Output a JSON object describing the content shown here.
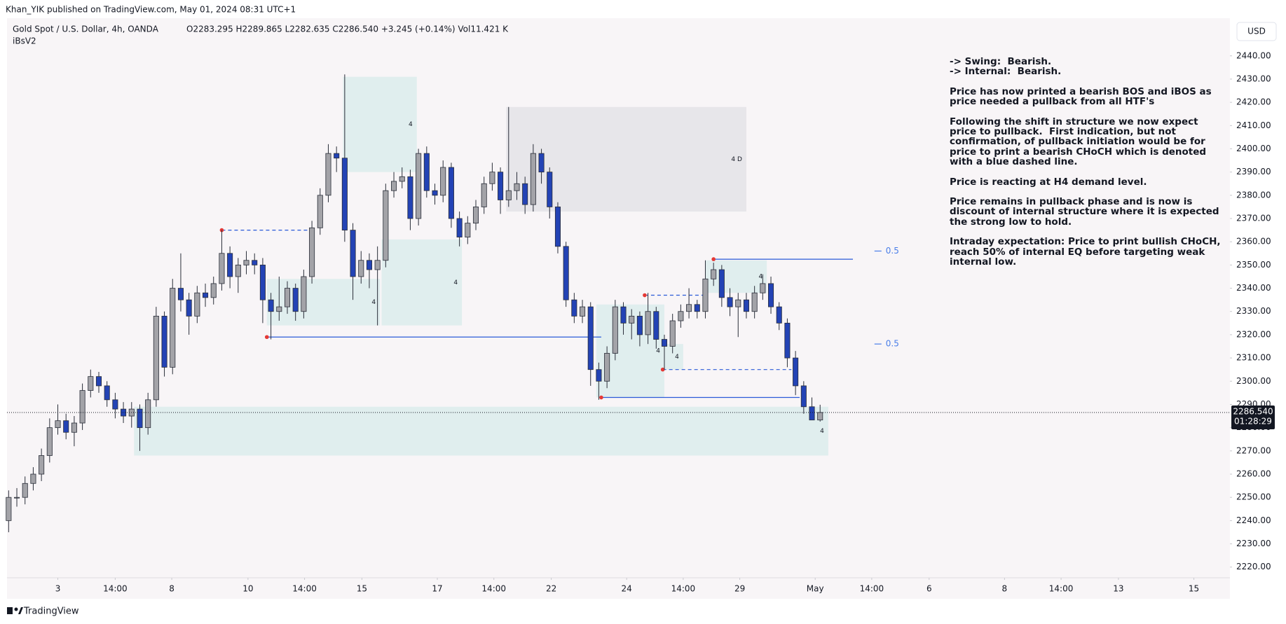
{
  "header": "Khan_YIK published on TradingView.com, May 01, 2024 08:31 UTC+1",
  "symbol": "Gold Spot / U.S. Dollar, 4h, OANDA",
  "ohlc_text": "O2283.295  H2289.865  L2282.635  C2286.540  +3.245 (+0.14%)  Vol11.421 K",
  "indicator": "iBsV2",
  "currency": "USD",
  "brand": "TradingView",
  "notes": [
    [
      "-> Swing:  Bearish.",
      "-> Internal:  Bearish."
    ],
    [
      "Price has now printed a bearish BOS and iBOS as",
      "price needed a pullback from all HTF's"
    ],
    [
      "Following the shift in structure we now expect",
      "price to pullback.  First indication, but not",
      "confirmation, of pullback initiation would be for",
      "price to print a bearish CHoCH which is denoted",
      "with a blue dashed line."
    ],
    [
      "Price is reacting at H4 demand level."
    ],
    [
      "Price remains in pullback phase and is now is",
      "discount of internal structure where it is expected",
      "the strong low to hold."
    ],
    [
      "Intraday expectation: Price to print bullish CHoCH,",
      "reach 50% of internal EQ before targeting weak",
      "internal low."
    ]
  ],
  "chart_data": {
    "type": "candlestick",
    "up_color": "#a3a3a8",
    "down_color": "#2343b5",
    "open": [
      2240,
      2250,
      2250,
      2256,
      2260,
      2268,
      2280,
      2283,
      2278,
      2282,
      2296,
      2302,
      2298,
      2292,
      2288,
      2285,
      2288,
      2280,
      2292,
      2328,
      2306,
      2340,
      2335,
      2328,
      2338,
      2336,
      2342,
      2355,
      2345,
      2350,
      2352,
      2350,
      2335,
      2330,
      2332,
      2340,
      2330,
      2345,
      2366,
      2380,
      2398,
      2396,
      2365,
      2345,
      2352,
      2348,
      2352,
      2382,
      2386,
      2388,
      2370,
      2398,
      2382,
      2380,
      2392,
      2370,
      2362,
      2368,
      2375,
      2385,
      2390,
      2378,
      2382,
      2385,
      2376,
      2398,
      2390,
      2375,
      2358,
      2335,
      2328,
      2332,
      2305,
      2300,
      2312,
      2332,
      2325,
      2328,
      2320,
      2330,
      2318,
      2315,
      2326,
      2330,
      2333,
      2330,
      2344,
      2348,
      2336,
      2332,
      2335,
      2330,
      2338,
      2342,
      2332,
      2325,
      2310,
      2298,
      2289,
      2283.295
    ],
    "high": [
      2253,
      2254,
      2259,
      2263,
      2271,
      2284,
      2290,
      2286,
      2285,
      2299,
      2305,
      2304,
      2300,
      2295,
      2291,
      2291,
      2290,
      2295,
      2332,
      2330,
      2344,
      2355,
      2338,
      2341,
      2342,
      2345,
      2365,
      2358,
      2353,
      2356,
      2355,
      2353,
      2338,
      2345,
      2343,
      2342,
      2348,
      2369,
      2383,
      2402,
      2401,
      2432,
      2368,
      2356,
      2355,
      2358,
      2385,
      2390,
      2392,
      2391,
      2400,
      2401,
      2385,
      2395,
      2394,
      2373,
      2371,
      2378,
      2388,
      2394,
      2392,
      2418,
      2390,
      2388,
      2402,
      2400,
      2392,
      2377,
      2360,
      2338,
      2335,
      2334,
      2308,
      2315,
      2335,
      2334,
      2331,
      2330,
      2338,
      2332,
      2320,
      2329,
      2333,
      2340,
      2335,
      2352,
      2351,
      2350,
      2340,
      2338,
      2338,
      2341,
      2346,
      2345,
      2334,
      2327,
      2313,
      2300,
      2293,
      2289.865
    ],
    "low": [
      2235,
      2246,
      2247,
      2253,
      2257,
      2265,
      2277,
      2275,
      2272,
      2279,
      2293,
      2295,
      2289,
      2284,
      2282,
      2280,
      2270,
      2277,
      2289,
      2302,
      2303,
      2330,
      2320,
      2325,
      2332,
      2333,
      2339,
      2340,
      2338,
      2346,
      2346,
      2325,
      2318,
      2326,
      2329,
      2326,
      2327,
      2342,
      2363,
      2377,
      2390,
      2360,
      2335,
      2342,
      2340,
      2324,
      2349,
      2379,
      2383,
      2365,
      2367,
      2379,
      2376,
      2377,
      2366,
      2358,
      2359,
      2365,
      2372,
      2382,
      2372,
      2375,
      2378,
      2372,
      2373,
      2385,
      2370,
      2355,
      2332,
      2325,
      2325,
      2298,
      2292,
      2297,
      2309,
      2320,
      2318,
      2315,
      2316,
      2314,
      2305,
      2312,
      2323,
      2327,
      2327,
      2327,
      2341,
      2332,
      2328,
      2319,
      2327,
      2327,
      2335,
      2329,
      2322,
      2306,
      2294,
      2286,
      2285,
      2282.635
    ],
    "close": [
      2250,
      2250,
      2256,
      2260,
      2268,
      2280,
      2283,
      2278,
      2282,
      2296,
      2302,
      2298,
      2292,
      2288,
      2285,
      2288,
      2280,
      2292,
      2328,
      2306,
      2340,
      2335,
      2328,
      2338,
      2336,
      2342,
      2355,
      2345,
      2350,
      2352,
      2350,
      2335,
      2330,
      2332,
      2340,
      2330,
      2345,
      2366,
      2380,
      2398,
      2396,
      2365,
      2345,
      2352,
      2348,
      2352,
      2382,
      2386,
      2388,
      2370,
      2398,
      2382,
      2380,
      2392,
      2370,
      2362,
      2368,
      2375,
      2385,
      2390,
      2378,
      2382,
      2385,
      2376,
      2398,
      2390,
      2375,
      2358,
      2335,
      2328,
      2332,
      2305,
      2300,
      2312,
      2332,
      2325,
      2328,
      2320,
      2330,
      2318,
      2315,
      2326,
      2330,
      2333,
      2330,
      2344,
      2348,
      2336,
      2332,
      2335,
      2330,
      2338,
      2342,
      2332,
      2325,
      2310,
      2298,
      2289,
      2283.295,
      2286.54
    ],
    "last_price_label": "2286.540",
    "countdown": "01:28:29",
    "xlim": [
      -0.2,
      149
    ],
    "ylim": [
      2215.4,
      2456.2
    ],
    "yticks": [
      {
        "value": 2220,
        "label": "2220.00"
      },
      {
        "value": 2230,
        "label": "2230.00"
      },
      {
        "value": 2240,
        "label": "2240.00"
      },
      {
        "value": 2250,
        "label": "2250.00"
      },
      {
        "value": 2260,
        "label": "2260.00"
      },
      {
        "value": 2270,
        "label": "2270.00"
      },
      {
        "value": 2280,
        "label": "2280.00"
      },
      {
        "value": 2290,
        "label": "2290.00"
      },
      {
        "value": 2300,
        "label": "2300.00"
      },
      {
        "value": 2310,
        "label": "2310.00"
      },
      {
        "value": 2320,
        "label": "2320.00"
      },
      {
        "value": 2330,
        "label": "2330.00"
      },
      {
        "value": 2340,
        "label": "2340.00"
      },
      {
        "value": 2350,
        "label": "2350.00"
      },
      {
        "value": 2360,
        "label": "2360.00"
      },
      {
        "value": 2370,
        "label": "2370.00"
      },
      {
        "value": 2380,
        "label": "2380.00"
      },
      {
        "value": 2390,
        "label": "2390.00"
      },
      {
        "value": 2400,
        "label": "2400.00"
      },
      {
        "value": 2410,
        "label": "2410.00"
      },
      {
        "value": 2420,
        "label": "2420.00"
      },
      {
        "value": 2430,
        "label": "2430.00"
      },
      {
        "value": 2440,
        "label": "2440.00"
      }
    ],
    "xticks": [
      {
        "value": 6,
        "label": "3"
      },
      {
        "value": 13,
        "label": "14:00"
      },
      {
        "value": 19.9,
        "label": "8"
      },
      {
        "value": 29.2,
        "label": "10"
      },
      {
        "value": 36.1,
        "label": "14:00"
      },
      {
        "value": 43.1,
        "label": "15"
      },
      {
        "value": 52.3,
        "label": "17"
      },
      {
        "value": 59.2,
        "label": "14:00"
      },
      {
        "value": 66.2,
        "label": "22"
      },
      {
        "value": 75.4,
        "label": "24"
      },
      {
        "value": 82.3,
        "label": "14:00"
      },
      {
        "value": 89.2,
        "label": "29"
      },
      {
        "value": 98.4,
        "label": "May"
      },
      {
        "value": 105.3,
        "label": "14:00"
      },
      {
        "value": 112.3,
        "label": "6"
      },
      {
        "value": 121.5,
        "label": "8"
      },
      {
        "value": 128.4,
        "label": "14:00"
      },
      {
        "value": 135.4,
        "label": "13"
      },
      {
        "value": 144.6,
        "label": "15"
      }
    ],
    "grid": false,
    "zones": [
      {
        "x": [
          40.8,
          49.8
        ],
        "y": [
          2390,
          2431
        ],
        "color": "#dcecec",
        "label": "4"
      },
      {
        "x": [
          31.5,
          45.3
        ],
        "y": [
          2324,
          2344
        ],
        "color": "#dcecec",
        "label": "4"
      },
      {
        "x": [
          45.5,
          55.3
        ],
        "y": [
          2324,
          2361
        ],
        "color": "#dcecec",
        "label": "4"
      },
      {
        "x": [
          60.7,
          90
        ],
        "y": [
          2373,
          2418
        ],
        "color": "#e4e3e8",
        "label": "4 D"
      },
      {
        "x": [
          15.3,
          100
        ],
        "y": [
          2268,
          2289
        ],
        "color": "#dcecec",
        "label": "4"
      },
      {
        "x": [
          71.7,
          80
        ],
        "y": [
          2293,
          2333
        ],
        "color": "#dcecec",
        "label": "4"
      },
      {
        "x": [
          80,
          82.3
        ],
        "y": [
          2305,
          2316
        ],
        "color": "#dcecec",
        "label": "4"
      },
      {
        "x": [
          85,
          92.5
        ],
        "y": [
          2338,
          2352
        ],
        "color": "#dcecec",
        "label": "4"
      }
    ],
    "lines": [
      {
        "x": [
          31.5,
          72.3
        ],
        "y": 2319,
        "style": "solid"
      },
      {
        "x": [
          72.3,
          96.5
        ],
        "y": 2293,
        "style": "solid"
      },
      {
        "x": [
          86,
          103
        ],
        "y": 2352.5,
        "style": "solid"
      },
      {
        "x": [
          26,
          36.8
        ],
        "y": 2365,
        "style": "dashed"
      },
      {
        "x": [
          79.8,
          95.5
        ],
        "y": 2305,
        "style": "dashed"
      },
      {
        "x": [
          77.6,
          85
        ],
        "y": 2337,
        "style": "dashed"
      }
    ],
    "line_color": "#2a5ad8",
    "levels": [
      {
        "x": 107,
        "y": 2356,
        "label": "0.5"
      },
      {
        "x": 107,
        "y": 2316,
        "label": "0.5"
      }
    ]
  }
}
